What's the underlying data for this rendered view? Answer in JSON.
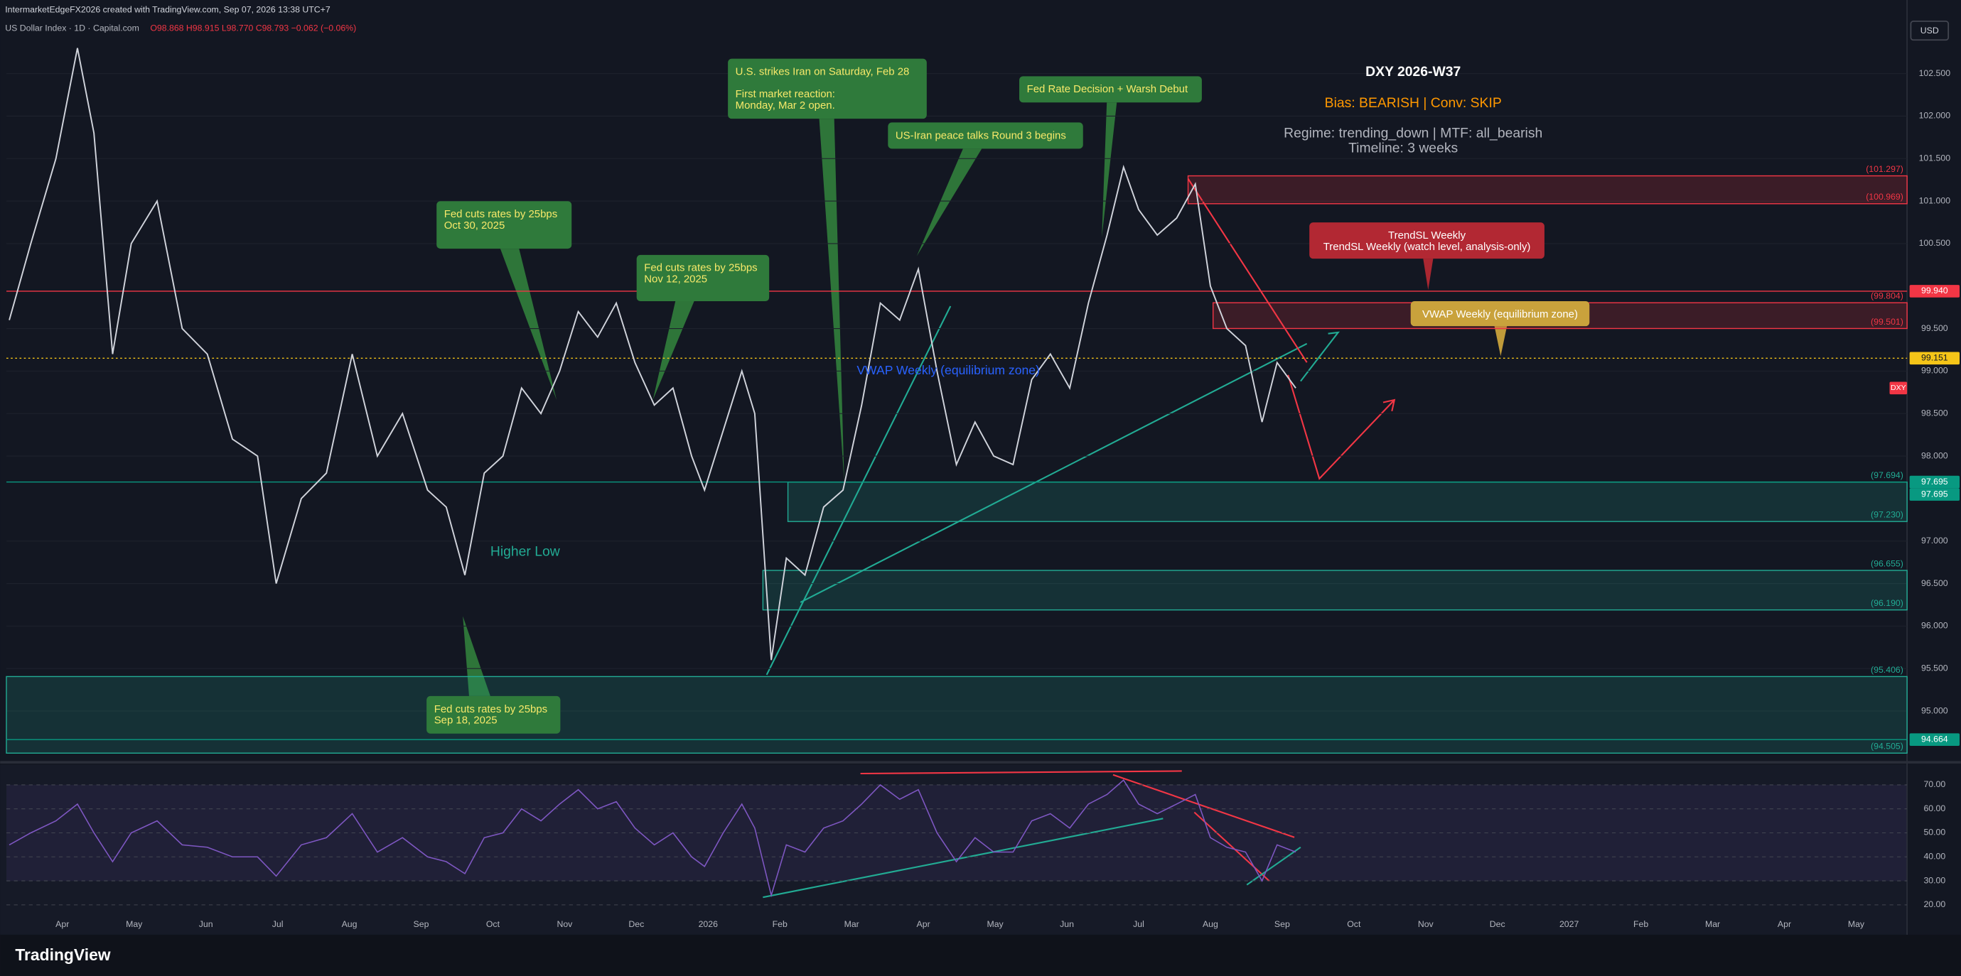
{
  "header": {
    "credit": "IntermarketEdgeFX2026 created with TradingView.com, Sep 07, 2026 13:38 UTC+7",
    "symbol": "US Dollar Index · 1D · Capital.com",
    "ohlc": "O98.868 H98.915 L98.770 C98.793 −0.062 (−0.06%)"
  },
  "currency": "USD",
  "brand": "TradingView",
  "chart_data": [
    {
      "type": "line",
      "x": [
        -0.74,
        -0.44,
        -0.09,
        0.21,
        0.44,
        0.7,
        0.96,
        1.32,
        1.67,
        2.02,
        2.37,
        2.72,
        2.98,
        3.33,
        3.68,
        4.04,
        4.39,
        4.74,
        5.09,
        5.35,
        5.61,
        5.88,
        6.14,
        6.4,
        6.67,
        6.93,
        7.19,
        7.46,
        7.72,
        7.98,
        8.25,
        8.51,
        8.77,
        8.95,
        9.21,
        9.47,
        9.65,
        9.88,
        10.09,
        10.35,
        10.61,
        10.88,
        11.14,
        11.4,
        11.67,
        11.93,
        12.19,
        12.46,
        12.72,
        12.98,
        13.25,
        13.51,
        13.77,
        14.04,
        14.3,
        14.56,
        14.79,
        15.0,
        15.26,
        15.53,
        15.79,
        16.0,
        16.23,
        16.49,
        16.72,
        16.93,
        17.19
      ],
      "series": [
        {
          "name": "DXY",
          "color": "#d1d4dc",
          "values": [
            99.6,
            100.5,
            101.5,
            102.8,
            101.8,
            99.2,
            100.5,
            101.0,
            99.5,
            99.2,
            98.2,
            98.0,
            96.5,
            97.5,
            97.8,
            99.2,
            98.0,
            98.5,
            97.6,
            97.4,
            96.6,
            97.8,
            98.0,
            98.8,
            98.5,
            99.0,
            99.7,
            99.4,
            99.8,
            99.1,
            98.6,
            98.8,
            98.0,
            97.6,
            98.3,
            99.0,
            98.5,
            95.6,
            96.8,
            96.6,
            97.4,
            97.6,
            98.6,
            99.8,
            99.6,
            100.2,
            99.0,
            97.9,
            98.4,
            98.0,
            97.9,
            98.9,
            99.2,
            98.8,
            99.8,
            100.6,
            101.4,
            100.9,
            100.6,
            100.8,
            101.2,
            100.0,
            99.5,
            99.3,
            98.4,
            99.1,
            98.8
          ]
        }
      ],
      "xlim": [
        -0.78,
        25.71
      ],
      "xticks": [
        {
          "value": 0,
          "label": "Apr"
        },
        {
          "value": 1,
          "label": "May"
        },
        {
          "value": 2,
          "label": "Jun"
        },
        {
          "value": 3,
          "label": "Jul"
        },
        {
          "value": 4,
          "label": "Aug"
        },
        {
          "value": 5,
          "label": "Sep"
        },
        {
          "value": 6,
          "label": "Oct"
        },
        {
          "value": 7,
          "label": "Nov"
        },
        {
          "value": 8,
          "label": "Dec"
        },
        {
          "value": 9,
          "label": "2026"
        },
        {
          "value": 10,
          "label": "Feb"
        },
        {
          "value": 11,
          "label": "Mar"
        },
        {
          "value": 12,
          "label": "Apr"
        },
        {
          "value": 13,
          "label": "May"
        },
        {
          "value": 14,
          "label": "Jun"
        },
        {
          "value": 15,
          "label": "Jul"
        },
        {
          "value": 16,
          "label": "Aug"
        },
        {
          "value": 17,
          "label": "Sep"
        },
        {
          "value": 18,
          "label": "Oct"
        },
        {
          "value": 19,
          "label": "Nov"
        },
        {
          "value": 20,
          "label": "Dec"
        },
        {
          "value": 21,
          "label": "2027"
        },
        {
          "value": 22,
          "label": "Feb"
        },
        {
          "value": 23,
          "label": "Mar"
        },
        {
          "value": 24,
          "label": "Apr"
        },
        {
          "value": 25,
          "label": "May"
        }
      ],
      "ylim": [
        94.5,
        103.16
      ],
      "yticks": [
        {
          "value": 102.5,
          "label": "102.500"
        },
        {
          "value": 102,
          "label": "102.000"
        },
        {
          "value": 101.5,
          "label": "101.500"
        },
        {
          "value": 101,
          "label": "101.000"
        },
        {
          "value": 100.5,
          "label": "100.500"
        },
        {
          "value": 99.5,
          "label": "99.500"
        },
        {
          "value": 99,
          "label": "99.000"
        },
        {
          "value": 98.5,
          "label": "98.500"
        },
        {
          "value": 98,
          "label": "98.000"
        },
        {
          "value": 97,
          "label": "97.000"
        },
        {
          "value": 96.5,
          "label": "96.500"
        },
        {
          "value": 96,
          "label": "96.000"
        },
        {
          "value": 95.5,
          "label": "95.500"
        },
        {
          "value": 95,
          "label": "95.000"
        }
      ],
      "zones": [
        {
          "top": {
            "value": 101.297,
            "label": "(101.297)"
          },
          "bottom": {
            "value": 100.969,
            "label": "(100.969)"
          },
          "color": "#f23645"
        },
        {
          "top": {
            "value": 99.804,
            "label": "(99.804)"
          },
          "bottom": {
            "value": 99.501,
            "label": "(99.501)"
          },
          "color": "#f23645"
        },
        {
          "top": {
            "value": 97.694,
            "label": "(97.694)"
          },
          "bottom": {
            "value": 97.23,
            "label": "(97.230)"
          },
          "color": "#22ab94"
        },
        {
          "top": {
            "value": 96.655,
            "label": "(96.655)"
          },
          "bottom": {
            "value": 96.19,
            "label": "(96.190)"
          },
          "color": "#22ab94"
        },
        {
          "top": {
            "value": 95.406,
            "label": "(95.406)"
          },
          "bottom": {
            "value": 94.505,
            "label": "(94.505)"
          },
          "color": "#22ab94"
        }
      ],
      "price_tags": [
        {
          "value": 99.94,
          "label": "99.940",
          "color": "#f23645"
        },
        {
          "value": 99.151,
          "label": "99.151",
          "color": "#f5c518"
        },
        {
          "value": 97.695,
          "label": "97.695",
          "color": "#089981"
        },
        {
          "value": 97.695,
          "label": "97.695",
          "color": "#089981"
        },
        {
          "value": 94.664,
          "label": "94.664",
          "color": "#089981"
        }
      ],
      "annotations": [
        {
          "lines": [
            "U.S. strikes Iran on Saturday, Feb 28",
            "",
            "First market reaction:",
            "Monday, Mar 2 open."
          ],
          "color": "#2f7a3b"
        },
        {
          "lines": [
            "Fed Rate Decision + Warsh Debut"
          ],
          "color": "#2f7a3b"
        },
        {
          "lines": [
            "US-Iran peace talks Round 3 begins"
          ],
          "color": "#2f7a3b"
        },
        {
          "lines": [
            "Fed cuts rates by 25bps",
            "Oct 30, 2025"
          ],
          "color": "#2f7a3b"
        },
        {
          "lines": [
            "Fed cuts rates by 25bps",
            "Nov 12, 2025"
          ],
          "color": "#2f7a3b"
        },
        {
          "lines": [
            "Fed cuts rates by 25bps",
            "Sep 18, 2025"
          ],
          "color": "#2f7a3b"
        },
        {
          "lines": [
            "TrendSL Weekly",
            "TrendSL Weekly (watch level, analysis-only)"
          ],
          "color": "#b22833"
        },
        {
          "lines": [
            "VWAP Weekly (equilibrium zone)"
          ],
          "color": "#c9a23c"
        }
      ],
      "higher_low": "Higher Low",
      "vwap_label": "VWAP Weekly (equilibrium zone)",
      "info": {
        "title": "DXY 2026-W37",
        "bias": "Bias: BEARISH | Conv: SKIP",
        "regime": "Regime: trending_down | MTF: all_bearish",
        "timeline": "Timeline: 3 weeks"
      }
    },
    {
      "type": "line",
      "x": [
        -0.74,
        -0.44,
        -0.09,
        0.21,
        0.44,
        0.7,
        0.96,
        1.32,
        1.67,
        2.02,
        2.37,
        2.72,
        2.98,
        3.33,
        3.68,
        4.04,
        4.39,
        4.74,
        5.09,
        5.35,
        5.61,
        5.88,
        6.14,
        6.4,
        6.67,
        6.93,
        7.19,
        7.46,
        7.72,
        7.98,
        8.25,
        8.51,
        8.77,
        8.95,
        9.21,
        9.47,
        9.65,
        9.88,
        10.09,
        10.35,
        10.61,
        10.88,
        11.14,
        11.4,
        11.67,
        11.93,
        12.19,
        12.46,
        12.72,
        12.98,
        13.25,
        13.51,
        13.77,
        14.04,
        14.3,
        14.56,
        14.79,
        15.0,
        15.26,
        15.53,
        15.79,
        16.0,
        16.23,
        16.49,
        16.72,
        16.93,
        17.19
      ],
      "series": [
        {
          "name": "RSI",
          "color": "#7e57c2",
          "values": [
            45,
            50,
            55,
            62,
            50,
            38,
            50,
            55,
            45,
            44,
            40,
            40,
            32,
            45,
            48,
            58,
            42,
            48,
            40,
            38,
            33,
            48,
            50,
            60,
            55,
            62,
            68,
            60,
            63,
            52,
            45,
            50,
            40,
            36,
            50,
            62,
            52,
            24,
            45,
            42,
            52,
            55,
            62,
            70,
            64,
            68,
            50,
            38,
            48,
            42,
            42,
            55,
            58,
            52,
            62,
            66,
            72,
            62,
            58,
            62,
            66,
            48,
            44,
            42,
            30,
            45,
            42
          ]
        }
      ],
      "xlim": [
        -0.78,
        25.71
      ],
      "ylim": [
        9.1,
        76.8
      ],
      "yticks": [
        {
          "value": 70,
          "label": "70.00"
        },
        {
          "value": 60,
          "label": "60.00"
        },
        {
          "value": 50,
          "label": "50.00"
        },
        {
          "value": 40,
          "label": "40.00"
        },
        {
          "value": 30,
          "label": "30.00"
        },
        {
          "value": 20,
          "label": "20.00"
        }
      ]
    }
  ]
}
